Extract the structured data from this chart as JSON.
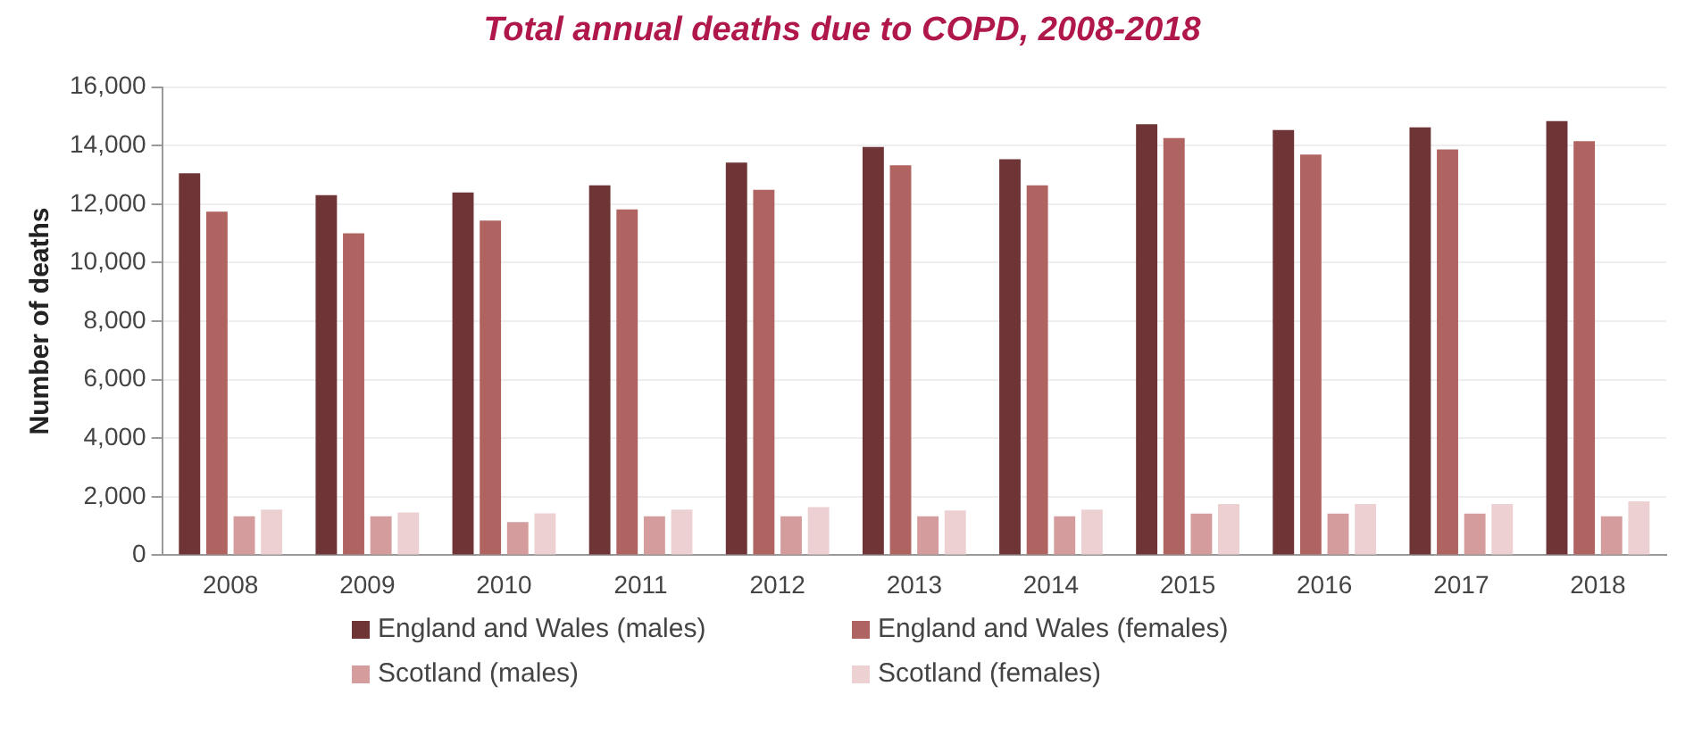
{
  "chart_data": {
    "type": "bar",
    "title": "Total annual deaths due to COPD, 2008-2018",
    "ylabel": "Number of deaths",
    "categories": [
      "2008",
      "2009",
      "2010",
      "2011",
      "2012",
      "2013",
      "2014",
      "2015",
      "2016",
      "2017",
      "2018"
    ],
    "series": [
      {
        "name": "England and Wales (males)",
        "color": "#6e3436",
        "values": [
          13050,
          12310,
          12400,
          12640,
          13420,
          13950,
          13530,
          14730,
          14530,
          14620,
          14840
        ]
      },
      {
        "name": "England and Wales (females)",
        "color": "#b06462",
        "values": [
          11740,
          11000,
          11440,
          11820,
          12490,
          13330,
          12640,
          14260,
          13690,
          13870,
          14150
        ]
      },
      {
        "name": "Scotland (males)",
        "color": "#d49c9c",
        "values": [
          1330,
          1330,
          1130,
          1330,
          1330,
          1330,
          1330,
          1420,
          1420,
          1420,
          1330
        ]
      },
      {
        "name": "Scotland (females)",
        "color": "#ecd0d2",
        "values": [
          1560,
          1460,
          1430,
          1560,
          1640,
          1530,
          1560,
          1750,
          1750,
          1750,
          1840
        ]
      }
    ],
    "ylim": [
      0,
      16000
    ],
    "yticks": [
      0,
      {
        "value": 2000,
        "label": "2,000"
      },
      {
        "value": 4000,
        "label": "4,000"
      },
      {
        "value": 6000,
        "label": "6,000"
      },
      {
        "value": 8000,
        "label": "8,000"
      },
      {
        "value": 10000,
        "label": "10,000"
      },
      {
        "value": 12000,
        "label": "12,000"
      },
      {
        "value": 14000,
        "label": "14,000"
      },
      {
        "value": 16000,
        "label": "16,000"
      }
    ],
    "grid": "y",
    "legend": "bottom"
  }
}
